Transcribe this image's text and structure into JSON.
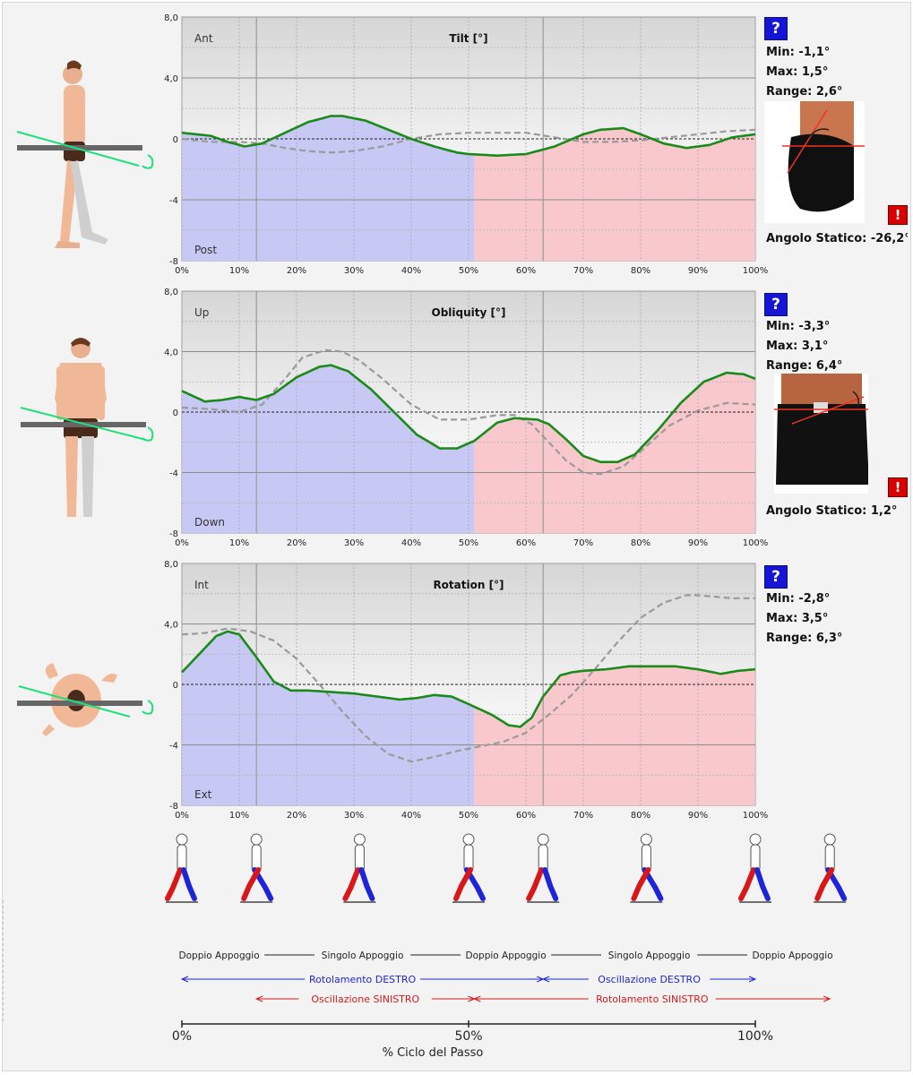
{
  "chart_data": [
    {
      "type": "area",
      "title": "Tilt [°]",
      "top_label": "Ant",
      "bottom_label": "Post",
      "ylim": [
        -8,
        8
      ],
      "yticks": [
        "8,0",
        "4,0",
        "0",
        "-4",
        "-8"
      ],
      "xlim": [
        0,
        100
      ],
      "xticks": [
        "0%",
        "10%",
        "20%",
        "30%",
        "40%",
        "50%",
        "60%",
        "70%",
        "80%",
        "90%",
        "100%"
      ],
      "series": [
        {
          "values_x": [
            0,
            5,
            8,
            11,
            14,
            18,
            22,
            26,
            28,
            32,
            36,
            40,
            44,
            48,
            50,
            55,
            60,
            65,
            70,
            73,
            77,
            80,
            84,
            88,
            92,
            96,
            100
          ],
          "values": [
            0.4,
            0.2,
            -0.2,
            -0.5,
            -0.3,
            0.4,
            1.1,
            1.5,
            1.5,
            1.2,
            0.6,
            0.0,
            -0.5,
            -0.9,
            -1.0,
            -1.1,
            -1.0,
            -0.5,
            0.3,
            0.6,
            0.7,
            0.3,
            -0.3,
            -0.6,
            -0.4,
            0.1,
            0.3
          ]
        },
        {
          "values_x": [
            0,
            5,
            10,
            14,
            18,
            22,
            26,
            30,
            35,
            40,
            45,
            50,
            55,
            60,
            65,
            70,
            75,
            80,
            85,
            90,
            95,
            100
          ],
          "values": [
            0.0,
            -0.2,
            -0.2,
            -0.3,
            -0.6,
            -0.8,
            -0.9,
            -0.8,
            -0.5,
            0.0,
            0.3,
            0.4,
            0.4,
            0.4,
            0.1,
            -0.2,
            -0.2,
            -0.1,
            0.1,
            0.3,
            0.5,
            0.6
          ]
        }
      ]
    },
    {
      "type": "area",
      "title": "Obliquity [°]",
      "top_label": "Up",
      "bottom_label": "Down",
      "ylim": [
        -8,
        8
      ],
      "yticks": [
        "8,0",
        "4,0",
        "0",
        "-4",
        "-8"
      ],
      "xlim": [
        0,
        100
      ],
      "xticks": [
        "0%",
        "10%",
        "20%",
        "30%",
        "40%",
        "50%",
        "60%",
        "70%",
        "80%",
        "90%",
        "100%"
      ],
      "series": [
        {
          "values_x": [
            0,
            4,
            7,
            10,
            13,
            16,
            20,
            24,
            26,
            29,
            33,
            37,
            41,
            45,
            48,
            51,
            55,
            58,
            62,
            64,
            67,
            70,
            73,
            76,
            79,
            83,
            87,
            91,
            95,
            98,
            100
          ],
          "values": [
            1.4,
            0.7,
            0.8,
            1.0,
            0.8,
            1.2,
            2.3,
            3.0,
            3.1,
            2.7,
            1.5,
            0.0,
            -1.5,
            -2.4,
            -2.4,
            -1.9,
            -0.7,
            -0.4,
            -0.5,
            -0.8,
            -1.8,
            -2.9,
            -3.3,
            -3.3,
            -2.8,
            -1.2,
            0.6,
            2.0,
            2.6,
            2.5,
            2.2
          ]
        },
        {
          "values_x": [
            0,
            5,
            10,
            14,
            18,
            21,
            25,
            28,
            31,
            35,
            40,
            45,
            50,
            55,
            58,
            61,
            64,
            67,
            70,
            73,
            77,
            80,
            85,
            90,
            95,
            100
          ],
          "values": [
            0.3,
            0.2,
            0.0,
            0.5,
            2.2,
            3.6,
            4.1,
            4.0,
            3.4,
            2.2,
            0.5,
            -0.5,
            -0.5,
            -0.2,
            -0.2,
            -0.8,
            -2.0,
            -3.2,
            -4.0,
            -4.1,
            -3.6,
            -2.6,
            -0.9,
            0.1,
            0.6,
            0.5
          ]
        }
      ]
    },
    {
      "type": "area",
      "title": "Rotation [°]",
      "top_label": "Int",
      "bottom_label": "Ext",
      "ylim": [
        -8,
        8
      ],
      "yticks": [
        "8,0",
        "4,0",
        "0",
        "-4",
        "-8"
      ],
      "xlim": [
        0,
        100
      ],
      "xticks": [
        "0%",
        "10%",
        "20%",
        "30%",
        "40%",
        "50%",
        "60%",
        "70%",
        "80%",
        "90%",
        "100%"
      ],
      "series": [
        {
          "values_x": [
            0,
            3,
            6,
            8,
            10,
            13,
            16,
            19,
            22,
            26,
            30,
            34,
            38,
            41,
            44,
            47,
            50,
            54,
            57,
            59,
            61,
            63,
            66,
            68,
            70,
            74,
            78,
            82,
            86,
            90,
            94,
            97,
            100
          ],
          "values": [
            0.8,
            2.0,
            3.2,
            3.5,
            3.3,
            1.8,
            0.2,
            -0.4,
            -0.4,
            -0.5,
            -0.6,
            -0.8,
            -1.0,
            -0.9,
            -0.7,
            -0.8,
            -1.3,
            -2.0,
            -2.7,
            -2.8,
            -2.2,
            -0.8,
            0.6,
            0.8,
            0.9,
            1.0,
            1.2,
            1.2,
            1.2,
            1.0,
            0.7,
            0.9,
            1.0
          ]
        },
        {
          "values_x": [
            0,
            4,
            8,
            12,
            16,
            20,
            24,
            28,
            32,
            36,
            40,
            44,
            48,
            52,
            56,
            60,
            64,
            68,
            72,
            76,
            80,
            84,
            88,
            90,
            93,
            96,
            100
          ],
          "values": [
            3.3,
            3.4,
            3.7,
            3.5,
            2.9,
            1.7,
            0.0,
            -1.8,
            -3.4,
            -4.6,
            -5.1,
            -4.8,
            -4.4,
            -4.1,
            -3.8,
            -3.2,
            -2.0,
            -0.7,
            1.0,
            2.8,
            4.4,
            5.4,
            5.9,
            5.9,
            5.8,
            5.7,
            5.7
          ]
        }
      ]
    }
  ],
  "side": [
    {
      "help": "?",
      "min": "Min:  -1,1°",
      "max": "Max:  1,5°",
      "range": "Range: 2,6°",
      "warn": "!",
      "static": "Angolo Statico: -26,2°"
    },
    {
      "help": "?",
      "min": "Min:  -3,3°",
      "max": "Max:  3,1°",
      "range": "Range: 6,4°",
      "warn": "!",
      "static": "Angolo Statico: 1,2°"
    },
    {
      "help": "?",
      "min": "Min:  -2,8°",
      "max": "Max:  3,5°",
      "range": "Range: 6,3°"
    }
  ],
  "phases": {
    "row1": [
      "Doppio Appoggio",
      "Singolo Appoggio",
      "Doppio Appoggio",
      "Singolo Appoggio",
      "Doppio Appoggio"
    ],
    "row2": [
      "Rotolamento DESTRO",
      "Oscillazione DESTRO"
    ],
    "row3": [
      "Oscillazione SINISTRO",
      "Rotolamento SINISTRO"
    ]
  },
  "axis": {
    "ticks": [
      "0%",
      "50%",
      "100%"
    ],
    "label": "% Ciclo del Passo"
  },
  "colors": {
    "stance": "#c8c8f5",
    "swing": "#f9c8cc",
    "patient": "#1a8a1a",
    "reference": "#9a9a9a",
    "right": "#1e24d8",
    "left": "#d81818"
  }
}
